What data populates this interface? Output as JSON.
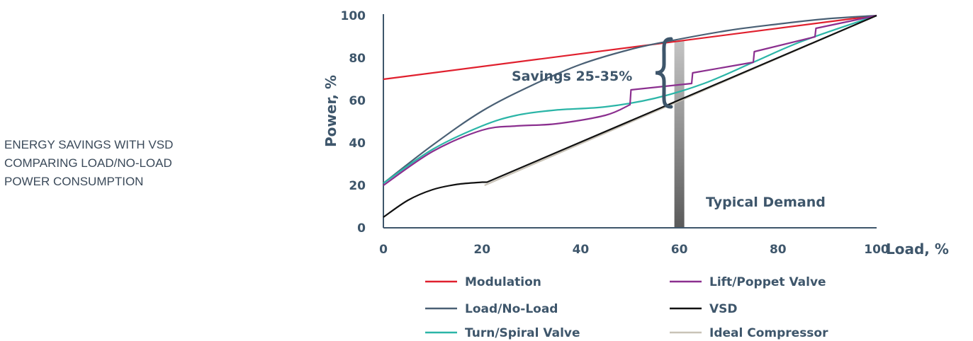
{
  "caption": {
    "line1": "ENERGY SAVINGS WITH VSD",
    "line2": "COMPARING LOAD/NO-LOAD",
    "line3": "POWER CONSUMPTION"
  },
  "chart_data": {
    "type": "line",
    "xlabel": "Load, %",
    "ylabel": "Power, %",
    "xlim": [
      0,
      100
    ],
    "ylim": [
      0,
      100
    ],
    "xticks": [
      "0",
      "20",
      "40",
      "60",
      "80",
      "100"
    ],
    "yticks": [
      "0",
      "20",
      "40",
      "60",
      "80",
      "100"
    ],
    "grid": false,
    "legend_position": "bottom",
    "series": [
      {
        "name": "Modulation",
        "color": "#e0202e",
        "points": [
          [
            0,
            70
          ],
          [
            100,
            100
          ]
        ]
      },
      {
        "name": "Load/No-Load",
        "color": "#4a6075",
        "points": [
          [
            0,
            21
          ],
          [
            10,
            39
          ],
          [
            20,
            55
          ],
          [
            30,
            67
          ],
          [
            40,
            77
          ],
          [
            50,
            84
          ],
          [
            58,
            88
          ],
          [
            70,
            93
          ],
          [
            80,
            96
          ],
          [
            90,
            98.5
          ],
          [
            100,
            100
          ]
        ]
      },
      {
        "name": "Turn/Spiral Valve",
        "color": "#2bb5a7",
        "points": [
          [
            0,
            21
          ],
          [
            10,
            37
          ],
          [
            20,
            48
          ],
          [
            27,
            53
          ],
          [
            35,
            55.5
          ],
          [
            45,
            57
          ],
          [
            55,
            61
          ],
          [
            65,
            68
          ],
          [
            75,
            78
          ],
          [
            85,
            88
          ],
          [
            100,
            100
          ]
        ]
      },
      {
        "name": "Lift/Poppet Valve",
        "color": "#8b2f8f",
        "points": [
          [
            0,
            20
          ],
          [
            10,
            36
          ],
          [
            20,
            46
          ],
          [
            27,
            48
          ],
          [
            35,
            49
          ],
          [
            45,
            53
          ],
          [
            50,
            58
          ],
          [
            50.2,
            65
          ],
          [
            62.5,
            68
          ],
          [
            62.7,
            73
          ],
          [
            75,
            78
          ],
          [
            75.2,
            83
          ],
          [
            87.5,
            90
          ],
          [
            87.7,
            94
          ],
          [
            100,
            100
          ]
        ]
      },
      {
        "name": "VSD",
        "color": "#111111",
        "points": [
          [
            0,
            5
          ],
          [
            5,
            13
          ],
          [
            10,
            18
          ],
          [
            15,
            20.5
          ],
          [
            20,
            21.5
          ],
          [
            21,
            21.5
          ],
          [
            100,
            100
          ]
        ]
      },
      {
        "name": "Ideal Compressor",
        "color": "#c9c3b7",
        "points": [
          [
            20.5,
            20
          ],
          [
            100,
            100
          ]
        ]
      }
    ],
    "annotations": {
      "savings": "Savings 25-35%",
      "typical_demand": "Typical Demand",
      "demand_x": 60
    }
  }
}
